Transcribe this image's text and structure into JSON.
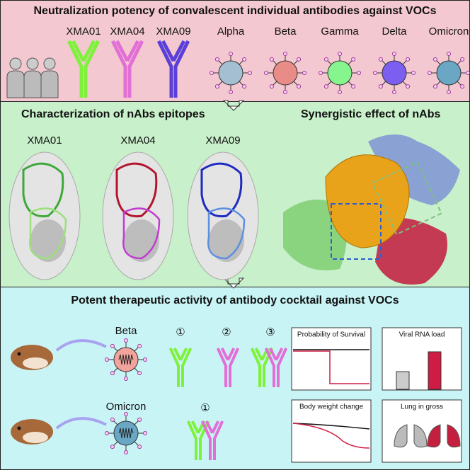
{
  "panel1": {
    "title": "Neutralization potency of convalescent individual antibodies against VOCs",
    "antibodies": [
      "XMA01",
      "XMA04",
      "XMA09"
    ],
    "variants": [
      "Alpha",
      "Beta",
      "Gamma",
      "Delta",
      "Omicron"
    ]
  },
  "panel2": {
    "epitope_title": "Characterization of nAbs epitopes",
    "epitopes": [
      "XMA01",
      "XMA04",
      "XMA09"
    ],
    "synergy_title": "Synergistic effect of nAbs"
  },
  "panel3": {
    "title": "Potent therapeutic activity of antibody cocktail against VOCs",
    "variants": [
      "Beta",
      "Omicron"
    ],
    "beta_cocktails": [
      "①",
      "②",
      "③"
    ],
    "omicron_cocktail": "①",
    "charts": [
      "Probability of  Survival",
      "Viral RNA load",
      "Body weight change",
      "Lung in gross"
    ]
  }
}
